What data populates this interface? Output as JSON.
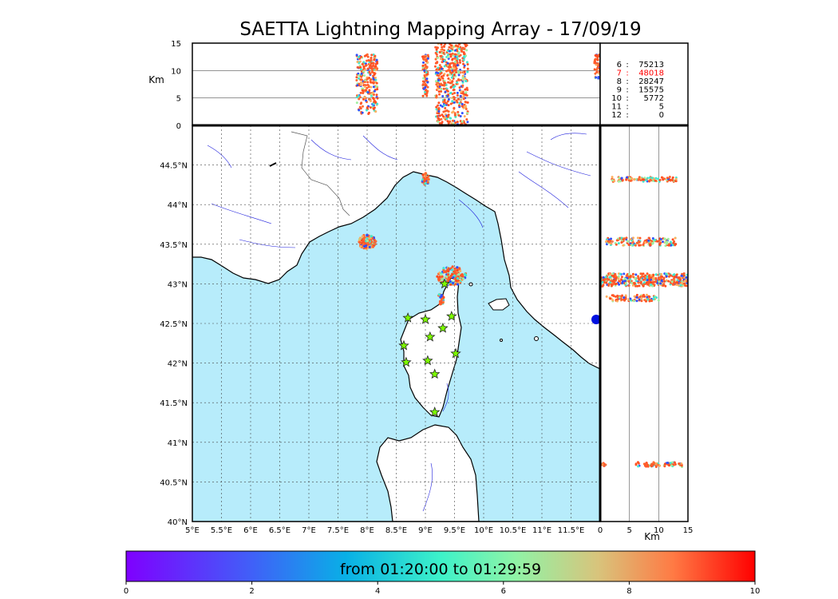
{
  "title": "SAETTA Lightning Mapping Array - 17/09/19",
  "top_panel": {
    "ylabel": "Km",
    "yticks": [
      "0",
      "5",
      "10",
      "15"
    ],
    "gridlines_km": [
      5,
      10
    ]
  },
  "right_panel": {
    "xlabel": "Km",
    "xticks": [
      "0",
      "5",
      "10",
      "15"
    ],
    "gridlines_km": [
      5,
      10
    ]
  },
  "stations_table": [
    {
      "n": "6",
      "count": "75213",
      "highlight": false
    },
    {
      "n": "7",
      "count": "48018",
      "highlight": true
    },
    {
      "n": "8",
      "count": "28247",
      "highlight": false
    },
    {
      "n": "9",
      "count": "15575",
      "highlight": false
    },
    {
      "n": "10",
      "count": "5772",
      "highlight": false
    },
    {
      "n": "11",
      "count": "5",
      "highlight": false
    },
    {
      "n": "12",
      "count": "0",
      "highlight": false
    }
  ],
  "map": {
    "lon_range": [
      5,
      12
    ],
    "lat_range": [
      40,
      45
    ],
    "lon_ticks": [
      "5°E",
      "5.5°E",
      "6°E",
      "6.5°E",
      "7°E",
      "7.5°E",
      "8°E",
      "8.5°E",
      "9°E",
      "9.5°E",
      "10°E",
      "10.5°E",
      "11°E",
      "11.5°E"
    ],
    "lat_ticks": [
      "40°N",
      "40.5°N",
      "41°N",
      "41.5°N",
      "42°N",
      "42.5°N",
      "43°N",
      "43.5°N",
      "44°N",
      "44.5°N"
    ],
    "sea_color": "#b7ecfb",
    "land_color": "#ffffff",
    "station_color": "#7cfc00",
    "stations": [
      {
        "lon": 8.7,
        "lat": 42.57
      },
      {
        "lon": 9.0,
        "lat": 42.55
      },
      {
        "lon": 9.45,
        "lat": 42.59
      },
      {
        "lon": 9.3,
        "lat": 42.44
      },
      {
        "lon": 9.08,
        "lat": 42.33
      },
      {
        "lon": 8.63,
        "lat": 42.22
      },
      {
        "lon": 9.52,
        "lat": 42.12
      },
      {
        "lon": 9.04,
        "lat": 42.03
      },
      {
        "lon": 8.67,
        "lat": 42.01
      },
      {
        "lon": 9.16,
        "lat": 41.86
      },
      {
        "lon": 9.16,
        "lat": 41.38
      },
      {
        "lon": 9.33,
        "lat": 43.0
      }
    ],
    "flash_clusters": [
      {
        "lon": 9.0,
        "lat": 44.32,
        "r_lon": 0.06,
        "r_lat": 0.08,
        "n": 40
      },
      {
        "lon": 8.0,
        "lat": 43.53,
        "r_lon": 0.15,
        "r_lat": 0.09,
        "n": 120
      },
      {
        "lon": 9.45,
        "lat": 43.1,
        "r_lon": 0.25,
        "r_lat": 0.12,
        "n": 160
      },
      {
        "lon": 9.27,
        "lat": 42.81,
        "r_lon": 0.05,
        "r_lat": 0.08,
        "n": 30
      }
    ]
  },
  "colorbar": {
    "label": "from 01:20:00 to 01:29:59",
    "ticks": [
      "0",
      "2",
      "4",
      "6",
      "8",
      "10"
    ],
    "range_min": [
      0,
      10
    ]
  }
}
